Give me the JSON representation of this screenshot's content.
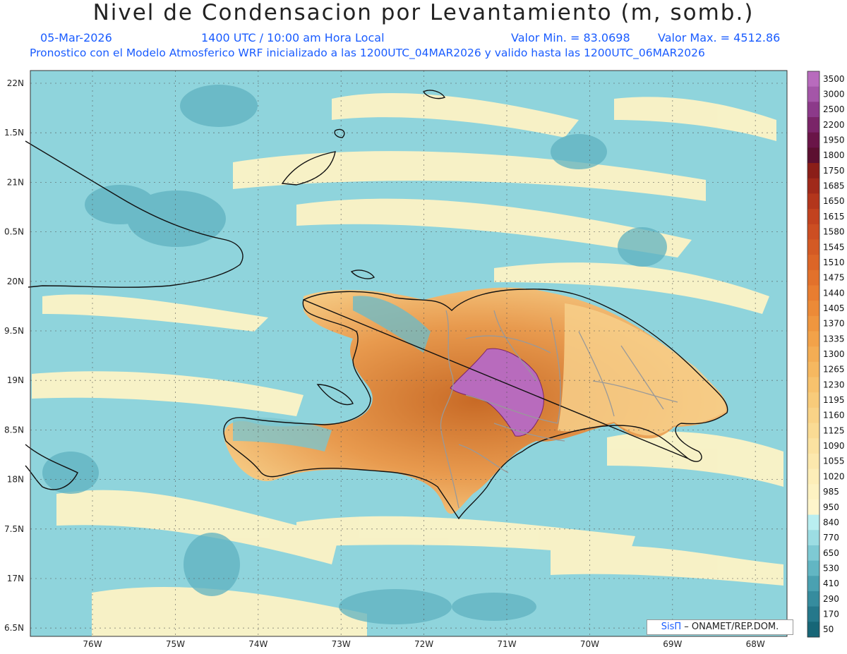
{
  "title": "Nivel de Condensacion por Levantamiento (m, somb.)",
  "header": {
    "date": "05-Mar-2026",
    "time": "1400 UTC / 10:00 am Hora Local",
    "min_value": "Valor Min. = 83.0698",
    "max_value": "Valor Max. = 4512.86",
    "model_line": "Pronostico con el Modelo Atmosferico WRF inicializado a las 1200UTC_04MAR2026 y valido hasta las  1200UTC_06MAR2026"
  },
  "credit": {
    "brand": "SisΠ",
    "text": "– ONAMET/REP.DOM."
  },
  "axes": {
    "lat_labels": [
      "22N",
      "1.5N",
      "21N",
      "0.5N",
      "20N",
      "9.5N",
      "19N",
      "8.5N",
      "18N",
      "7.5N",
      "17N",
      "6.5N"
    ],
    "lon_labels": [
      "76W",
      "75W",
      "74W",
      "73W",
      "72W",
      "71W",
      "70W",
      "69W",
      "68W"
    ]
  },
  "colorbar": {
    "levels": [
      "3500",
      "3000",
      "2500",
      "2200",
      "1950",
      "1800",
      "1750",
      "1685",
      "1650",
      "1615",
      "1580",
      "1545",
      "1510",
      "1475",
      "1440",
      "1405",
      "1370",
      "1335",
      "1300",
      "1265",
      "1230",
      "1195",
      "1160",
      "1125",
      "1090",
      "1055",
      "1020",
      "985",
      "950",
      "840",
      "770",
      "650",
      "530",
      "410",
      "290",
      "170",
      "50"
    ],
    "colors": [
      "#b86bbd",
      "#a456a8",
      "#8c3a8a",
      "#7a2468",
      "#6a1548",
      "#5c0f30",
      "#8b1e18",
      "#a0291a",
      "#b3361c",
      "#c2421f",
      "#cc4e22",
      "#d45a24",
      "#dc6527",
      "#e2712b",
      "#e87d30",
      "#ec8a37",
      "#ef963f",
      "#f2a249",
      "#f4ad54",
      "#f6b860",
      "#f7c26d",
      "#f8cb7a",
      "#f9d387",
      "#fadb94",
      "#fbe2a1",
      "#fce8ad",
      "#fdeeb8",
      "#fdf2c2",
      "#fef5cb",
      "#b9eef0",
      "#9cdde3",
      "#7ecad4",
      "#62b6c3",
      "#4aa1b1",
      "#368c9e",
      "#25788b",
      "#176677"
    ],
    "ocean_color": "#8dd3dc",
    "land_color": "#e9a154"
  }
}
